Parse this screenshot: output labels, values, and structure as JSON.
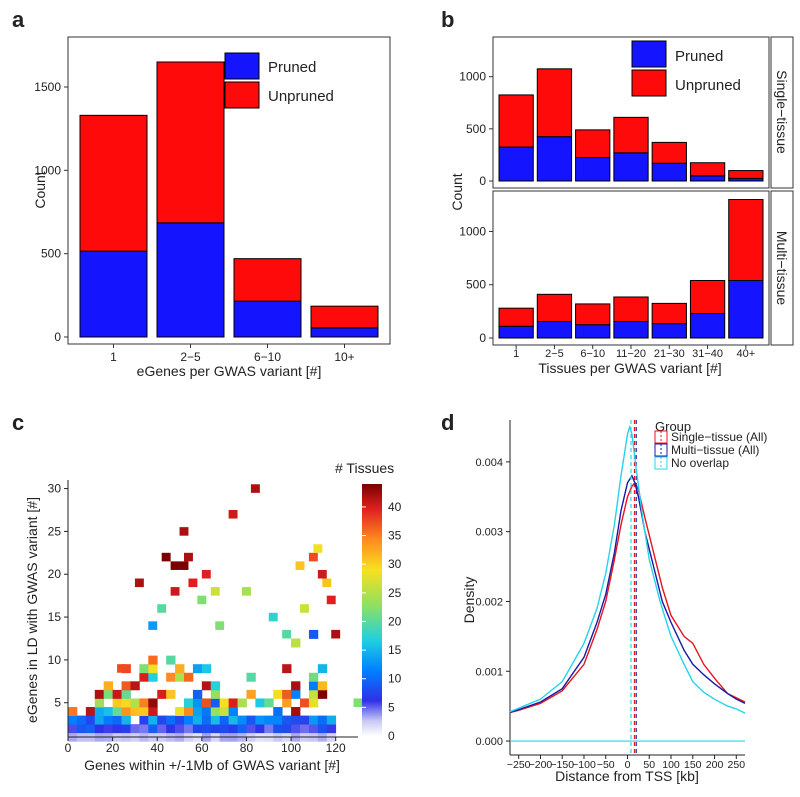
{
  "chart_data": [
    {
      "panel": "a",
      "type": "bar",
      "stacked": true,
      "xlabel": "eGenes per GWAS variant [#]",
      "ylabel": "Count",
      "categories": [
        "1",
        "2−5",
        "6−10",
        "10+"
      ],
      "ylim": [
        0,
        1800
      ],
      "yticks": [
        0,
        500,
        1000,
        1500
      ],
      "series": [
        {
          "name": "Pruned",
          "color": "#1414ff",
          "values": [
            515,
            685,
            215,
            55
          ]
        },
        {
          "name": "Unpruned",
          "color": "#ff0a0a",
          "values": [
            815,
            965,
            255,
            130
          ]
        }
      ],
      "legend": [
        "Pruned",
        "Unpruned"
      ],
      "legend_position": "top-right"
    },
    {
      "panel": "b",
      "type": "bar",
      "stacked": true,
      "xlabel": "Tissues per GWAS variant [#]",
      "ylabel": "Count",
      "categories": [
        "1",
        "2−5",
        "6−10",
        "11−20",
        "21−30",
        "31−40",
        "40+"
      ],
      "facets": [
        {
          "strip": "Single−tissue",
          "ylim": [
            0,
            1380
          ],
          "yticks": [
            0,
            500,
            1000
          ],
          "series": [
            {
              "name": "Pruned",
              "values": [
                325,
                425,
                225,
                270,
                170,
                50,
                25
              ]
            },
            {
              "name": "Unpruned",
              "values": [
                500,
                650,
                265,
                340,
                200,
                125,
                75
              ]
            }
          ]
        },
        {
          "strip": "Multi−tissue",
          "ylim": [
            0,
            1380
          ],
          "yticks": [
            0,
            500,
            1000
          ],
          "series": [
            {
              "name": "Pruned",
              "values": [
                110,
                155,
                125,
                155,
                135,
                230,
                540
              ]
            },
            {
              "name": "Unpruned",
              "values": [
                170,
                255,
                195,
                230,
                190,
                310,
                760
              ]
            }
          ]
        }
      ],
      "legend": [
        "Pruned",
        "Unpruned"
      ],
      "legend_position": "top-right"
    },
    {
      "panel": "c",
      "type": "heatmap",
      "title": "# Tissues",
      "xlabel": "Genes within +/-1Mb of GWAS variant [#]",
      "ylabel": "eGenes in LD with GWAS variant [#]",
      "xlim": [
        0,
        130
      ],
      "ylim": [
        1,
        31
      ],
      "xticks": [
        0,
        20,
        40,
        60,
        80,
        100,
        120
      ],
      "yticks": [
        5,
        10,
        15,
        20,
        25,
        30
      ],
      "colorbar_ticks": [
        0,
        5,
        10,
        15,
        20,
        25,
        30,
        35,
        40
      ],
      "colorbar_range": [
        0,
        44
      ]
    },
    {
      "panel": "d",
      "type": "line",
      "xlabel": "Distance from TSS [kb]",
      "ylabel": "Density",
      "xlim": [
        -270,
        270
      ],
      "ylim": [
        -0.0002,
        0.0046
      ],
      "xticks": [
        -250,
        -200,
        -150,
        -100,
        -50,
        0,
        50,
        100,
        150,
        200,
        250
      ],
      "yticks": [
        0,
        0.001,
        0.002,
        0.003,
        0.004
      ],
      "ytick_labels": [
        "0.000",
        "0.001",
        "0.002",
        "0.003",
        "0.004"
      ],
      "legend_title": "Group",
      "legend_position": "top-right",
      "series": [
        {
          "name": "Single−tissue (All)",
          "color": "#e8141c",
          "mean": 16,
          "x": [
            -270,
            -250,
            -200,
            -150,
            -100,
            -70,
            -50,
            -30,
            -15,
            0,
            10,
            17,
            25,
            40,
            60,
            80,
            100,
            130,
            150,
            175,
            200,
            230,
            250,
            270
          ],
          "y": [
            0.00041,
            0.00044,
            0.00054,
            0.00072,
            0.0011,
            0.0016,
            0.002,
            0.0026,
            0.0031,
            0.0035,
            0.00365,
            0.0037,
            0.0036,
            0.0032,
            0.0027,
            0.0022,
            0.0018,
            0.0015,
            0.0014,
            0.0011,
            0.0009,
            0.00068,
            0.00062,
            0.00056
          ]
        },
        {
          "name": "Multi−tissue (All)",
          "color": "#1a1aa6",
          "mean": 20,
          "x": [
            -270,
            -250,
            -200,
            -150,
            -100,
            -70,
            -50,
            -30,
            -15,
            0,
            10,
            17,
            25,
            40,
            60,
            80,
            100,
            130,
            150,
            175,
            200,
            230,
            250,
            270
          ],
          "y": [
            0.00041,
            0.00045,
            0.00056,
            0.00075,
            0.0012,
            0.0017,
            0.0021,
            0.0027,
            0.0033,
            0.0037,
            0.0038,
            0.0037,
            0.0035,
            0.003,
            0.0025,
            0.002,
            0.0017,
            0.0013,
            0.0011,
            0.00095,
            0.00082,
            0.00068,
            0.0006,
            0.00054
          ]
        },
        {
          "name": "No overlap",
          "color": "#27d3ea",
          "mean": 8,
          "x": [
            -270,
            -250,
            -200,
            -150,
            -100,
            -70,
            -50,
            -30,
            -15,
            0,
            5,
            10,
            20,
            35,
            50,
            75,
            100,
            130,
            150,
            175,
            200,
            230,
            250,
            270
          ],
          "y": [
            0.00042,
            0.00047,
            0.0006,
            0.00085,
            0.0014,
            0.0019,
            0.0024,
            0.0031,
            0.0038,
            0.0044,
            0.0045,
            0.0044,
            0.0039,
            0.0032,
            0.0026,
            0.002,
            0.0015,
            0.0011,
            0.00085,
            0.0007,
            0.0006,
            0.0005,
            0.00046,
            0.0004
          ]
        }
      ],
      "baseline": 0.0
    }
  ],
  "panel_labels": [
    "a",
    "b",
    "c",
    "d"
  ]
}
